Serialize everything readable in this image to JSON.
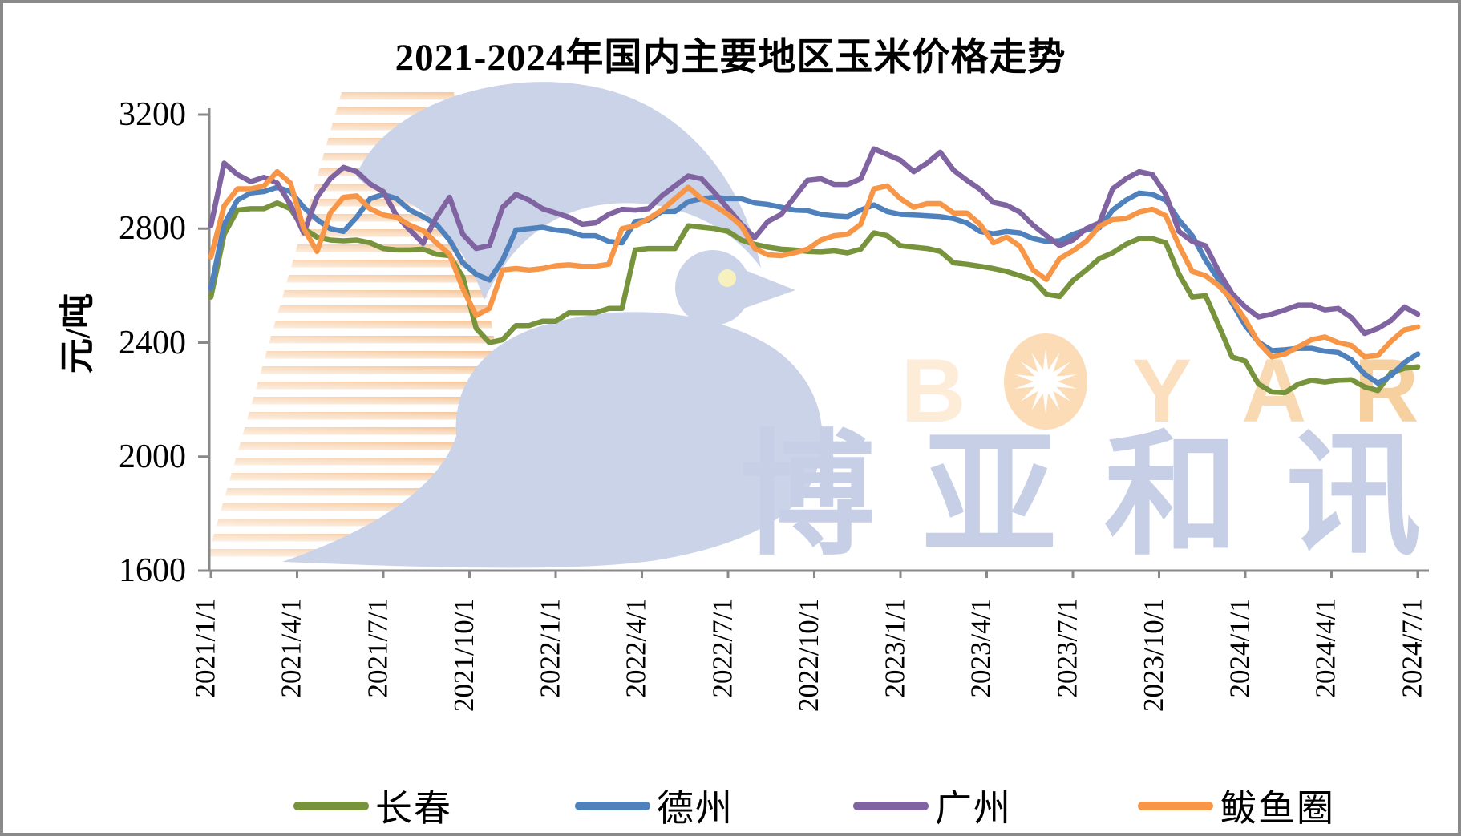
{
  "title": "2021-2024年国内主要地区玉米价格走势",
  "y_axis": {
    "unit": "元/吨",
    "tick_labels": [
      "3200",
      "2800",
      "2400",
      "2000",
      "1600"
    ],
    "min": 1600,
    "max": 3200
  },
  "x_axis": {
    "tick_labels": [
      "2021/1/1",
      "2021/4/1",
      "2021/7/1",
      "2021/10/1",
      "2022/1/1",
      "2022/4/1",
      "2022/7/1",
      "2022/10/1",
      "2023/1/1",
      "2023/4/1",
      "2023/7/1",
      "2023/10/1",
      "2024/1/1",
      "2024/4/1",
      "2024/7/1"
    ]
  },
  "legend": [
    {
      "label": "长春",
      "color": "#77933C"
    },
    {
      "label": "德州",
      "color": "#4F81BD"
    },
    {
      "label": "广州",
      "color": "#8064A2"
    },
    {
      "label": "鲅鱼圈",
      "color": "#F79646"
    }
  ],
  "watermark": {
    "brand_latin": "BOYAR",
    "brand_cjk": "博亚和讯",
    "latin_color": "#fadfbd",
    "cjk_color": "#c6cfe6",
    "bird_color": "#cbd3e8",
    "eye_color": "#f7f2bd",
    "stripe_color": "#f2b377"
  },
  "chart_data": {
    "type": "line",
    "title": "2021-2024年国内主要地区玉米价格走势",
    "ylabel": "元/吨",
    "ylim": [
      1600,
      3200
    ],
    "x_tick_labels": [
      "2021/1/1",
      "2021/4/1",
      "2021/7/1",
      "2021/10/1",
      "2022/1/1",
      "2022/4/1",
      "2022/7/1",
      "2022/10/1",
      "2023/1/1",
      "2023/4/1",
      "2023/7/1",
      "2023/10/1",
      "2024/1/1",
      "2024/4/1",
      "2024/7/1"
    ],
    "sampling": "biweekly from 2021/1/1 to 2024/7/1, unit yuan/ton",
    "series": [
      {
        "name": "长春",
        "color": "#77933C",
        "values": [
          2560,
          2780,
          2865,
          2870,
          2870,
          2890,
          2870,
          2800,
          2770,
          2760,
          2757,
          2760,
          2750,
          2730,
          2725,
          2725,
          2728,
          2710,
          2705,
          2630,
          2450,
          2400,
          2410,
          2460,
          2460,
          2475,
          2475,
          2505,
          2505,
          2505,
          2520,
          2520,
          2725,
          2730,
          2730,
          2730,
          2810,
          2805,
          2800,
          2790,
          2760,
          2745,
          2735,
          2728,
          2725,
          2720,
          2718,
          2722,
          2715,
          2728,
          2785,
          2775,
          2740,
          2735,
          2730,
          2720,
          2680,
          2675,
          2668,
          2660,
          2650,
          2635,
          2620,
          2570,
          2562,
          2618,
          2655,
          2695,
          2715,
          2745,
          2765,
          2765,
          2750,
          2640,
          2560,
          2565,
          2460,
          2350,
          2335,
          2255,
          2227,
          2225,
          2255,
          2268,
          2262,
          2268,
          2270,
          2245,
          2232,
          2295,
          2310,
          2315
        ]
      },
      {
        "name": "德州",
        "color": "#4F81BD",
        "values": [
          2590,
          2815,
          2900,
          2925,
          2930,
          2945,
          2930,
          2875,
          2832,
          2800,
          2790,
          2840,
          2905,
          2920,
          2905,
          2865,
          2842,
          2815,
          2760,
          2680,
          2640,
          2620,
          2690,
          2795,
          2800,
          2805,
          2795,
          2790,
          2775,
          2775,
          2755,
          2750,
          2825,
          2830,
          2860,
          2860,
          2895,
          2905,
          2910,
          2905,
          2905,
          2890,
          2885,
          2875,
          2865,
          2863,
          2850,
          2845,
          2842,
          2865,
          2883,
          2860,
          2850,
          2848,
          2845,
          2842,
          2835,
          2820,
          2790,
          2782,
          2790,
          2785,
          2765,
          2755,
          2757,
          2780,
          2795,
          2803,
          2865,
          2900,
          2925,
          2920,
          2900,
          2830,
          2775,
          2690,
          2620,
          2540,
          2460,
          2402,
          2372,
          2375,
          2380,
          2380,
          2370,
          2365,
          2340,
          2290,
          2258,
          2285,
          2330,
          2360
        ]
      },
      {
        "name": "广州",
        "color": "#8064A2",
        "values": [
          2810,
          3030,
          2990,
          2965,
          2980,
          2960,
          2885,
          2785,
          2910,
          2975,
          3015,
          3000,
          2957,
          2930,
          2845,
          2795,
          2748,
          2840,
          2910,
          2780,
          2730,
          2740,
          2875,
          2920,
          2900,
          2870,
          2855,
          2840,
          2815,
          2820,
          2850,
          2868,
          2865,
          2870,
          2915,
          2950,
          2985,
          2975,
          2925,
          2870,
          2815,
          2768,
          2825,
          2850,
          2910,
          2970,
          2975,
          2955,
          2955,
          2975,
          3080,
          3060,
          3040,
          3000,
          3030,
          3068,
          3005,
          2970,
          2938,
          2892,
          2882,
          2858,
          2812,
          2775,
          2740,
          2760,
          2800,
          2820,
          2940,
          2975,
          3000,
          2990,
          2920,
          2790,
          2755,
          2740,
          2650,
          2572,
          2525,
          2490,
          2500,
          2515,
          2532,
          2532,
          2515,
          2520,
          2488,
          2432,
          2450,
          2478,
          2525,
          2500
        ]
      },
      {
        "name": "鲅鱼圈",
        "color": "#F79646",
        "values": [
          2700,
          2880,
          2940,
          2940,
          2950,
          3000,
          2960,
          2800,
          2720,
          2855,
          2910,
          2915,
          2870,
          2848,
          2840,
          2812,
          2793,
          2750,
          2710,
          2590,
          2495,
          2520,
          2655,
          2660,
          2655,
          2660,
          2670,
          2673,
          2668,
          2668,
          2675,
          2800,
          2810,
          2835,
          2865,
          2905,
          2945,
          2905,
          2880,
          2850,
          2810,
          2730,
          2708,
          2705,
          2715,
          2728,
          2760,
          2775,
          2780,
          2815,
          2940,
          2950,
          2905,
          2875,
          2888,
          2888,
          2855,
          2855,
          2815,
          2750,
          2770,
          2738,
          2655,
          2622,
          2695,
          2722,
          2755,
          2808,
          2832,
          2835,
          2858,
          2868,
          2845,
          2740,
          2650,
          2635,
          2600,
          2550,
          2480,
          2400,
          2350,
          2360,
          2385,
          2410,
          2420,
          2400,
          2390,
          2350,
          2355,
          2405,
          2445,
          2455
        ]
      }
    ]
  }
}
